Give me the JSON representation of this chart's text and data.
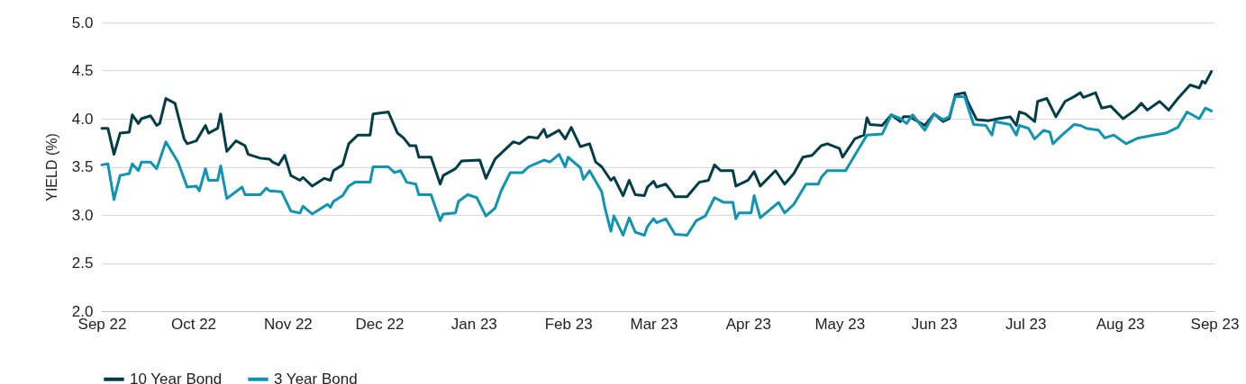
{
  "chart_data": {
    "type": "line",
    "ylabel": "YIELD (%)",
    "xlim": [
      "2022-09-01",
      "2023-09-01"
    ],
    "xticks": [
      {
        "value": "2022-09-01",
        "label": "Sep 22"
      },
      {
        "value": "2022-10-01",
        "label": "Oct 22"
      },
      {
        "value": "2022-11-01",
        "label": "Nov 22"
      },
      {
        "value": "2022-12-01",
        "label": "Dec 22"
      },
      {
        "value": "2023-01-01",
        "label": "Jan 23"
      },
      {
        "value": "2023-02-01",
        "label": "Feb 23"
      },
      {
        "value": "2023-03-01",
        "label": "Mar 23"
      },
      {
        "value": "2023-04-01",
        "label": "Apr 23"
      },
      {
        "value": "2023-05-01",
        "label": "May 23"
      },
      {
        "value": "2023-06-01",
        "label": "Jun 23"
      },
      {
        "value": "2023-07-01",
        "label": "Jul 23"
      },
      {
        "value": "2023-08-01",
        "label": "Aug 23"
      },
      {
        "value": "2023-09-01",
        "label": "Sep 23"
      }
    ],
    "ylim": [
      2.0,
      5.0
    ],
    "yticks": [
      {
        "value": 2.0,
        "label": "2.0"
      },
      {
        "value": 2.5,
        "label": "2.5"
      },
      {
        "value": 3.0,
        "label": "3.0"
      },
      {
        "value": 3.5,
        "label": "3.5"
      },
      {
        "value": 4.0,
        "label": "4.0"
      },
      {
        "value": 4.5,
        "label": "4.5"
      },
      {
        "value": 5.0,
        "label": "5.0"
      }
    ],
    "grid": "y",
    "legend": "bottom",
    "marker": "none",
    "line_style": "solid",
    "series": [
      {
        "name": "10 Year Bond",
        "color": "#033d48",
        "x": [
          "2022-09-01",
          "2022-09-03",
          "2022-09-05",
          "2022-09-07",
          "2022-09-10",
          "2022-09-11",
          "2022-09-13",
          "2022-09-14",
          "2022-09-17",
          "2022-09-19",
          "2022-09-20",
          "2022-09-22",
          "2022-09-25",
          "2022-09-28",
          "2022-09-29",
          "2022-10-02",
          "2022-10-05",
          "2022-10-06",
          "2022-10-09",
          "2022-10-10",
          "2022-10-12",
          "2022-10-15",
          "2022-10-18",
          "2022-10-19",
          "2022-10-23",
          "2022-10-26",
          "2022-10-27",
          "2022-10-29",
          "2022-10-31",
          "2022-11-02",
          "2022-11-05",
          "2022-11-06",
          "2022-11-09",
          "2022-11-13",
          "2022-11-15",
          "2022-11-16",
          "2022-11-19",
          "2022-11-21",
          "2022-11-24",
          "2022-11-28",
          "2022-11-29",
          "2022-12-04",
          "2022-12-07",
          "2022-12-09",
          "2022-12-11",
          "2022-12-13",
          "2022-12-14",
          "2022-12-18",
          "2022-12-21",
          "2022-12-22",
          "2022-12-26",
          "2022-12-28",
          "2023-01-03",
          "2023-01-05",
          "2023-01-08",
          "2023-01-14",
          "2023-01-16",
          "2023-01-19",
          "2023-01-22",
          "2023-01-24",
          "2023-01-25",
          "2023-01-29",
          "2023-01-31",
          "2023-02-02",
          "2023-02-05",
          "2023-02-08",
          "2023-02-10",
          "2023-02-12",
          "2023-02-15",
          "2023-02-16",
          "2023-02-19",
          "2023-02-21",
          "2023-02-23",
          "2023-02-26",
          "2023-02-27",
          "2023-03-01",
          "2023-03-02",
          "2023-03-05",
          "2023-03-07",
          "2023-03-08",
          "2023-03-12",
          "2023-03-16",
          "2023-03-19",
          "2023-03-21",
          "2023-03-23",
          "2023-03-27",
          "2023-03-28",
          "2023-04-01",
          "2023-04-03",
          "2023-04-05",
          "2023-04-10",
          "2023-04-13",
          "2023-04-16",
          "2023-04-19",
          "2023-04-22",
          "2023-04-25",
          "2023-04-27",
          "2023-05-01",
          "2023-05-02",
          "2023-05-06",
          "2023-05-09",
          "2023-05-10",
          "2023-05-11",
          "2023-05-15",
          "2023-05-18",
          "2023-05-21",
          "2023-05-22",
          "2023-05-24",
          "2023-05-29",
          "2023-06-01",
          "2023-06-04",
          "2023-06-06",
          "2023-06-08",
          "2023-06-11",
          "2023-06-12",
          "2023-06-15",
          "2023-06-19",
          "2023-06-22",
          "2023-06-26",
          "2023-06-28",
          "2023-06-29",
          "2023-07-01",
          "2023-07-04",
          "2023-07-05",
          "2023-07-08",
          "2023-07-11",
          "2023-07-14",
          "2023-07-17",
          "2023-07-19",
          "2023-07-20",
          "2023-07-24",
          "2023-07-26",
          "2023-07-29",
          "2023-08-02",
          "2023-08-06",
          "2023-08-08",
          "2023-08-10",
          "2023-08-14",
          "2023-08-17",
          "2023-08-20",
          "2023-08-24",
          "2023-08-27",
          "2023-08-28",
          "2023-08-29",
          "2023-08-31"
        ],
        "values": [
          3.9,
          3.9,
          3.63,
          3.85,
          3.86,
          4.04,
          3.95,
          4.0,
          4.03,
          3.93,
          3.95,
          4.21,
          4.16,
          3.79,
          3.74,
          3.77,
          3.93,
          3.85,
          3.9,
          4.05,
          3.66,
          3.77,
          3.72,
          3.63,
          3.59,
          3.58,
          3.55,
          3.52,
          3.62,
          3.41,
          3.36,
          3.39,
          3.3,
          3.38,
          3.36,
          3.46,
          3.52,
          3.74,
          3.83,
          3.83,
          4.05,
          4.07,
          3.85,
          3.8,
          3.72,
          3.72,
          3.6,
          3.6,
          3.32,
          3.41,
          3.48,
          3.56,
          3.57,
          3.38,
          3.58,
          3.76,
          3.74,
          3.81,
          3.8,
          3.89,
          3.81,
          3.88,
          3.79,
          3.91,
          3.71,
          3.74,
          3.55,
          3.5,
          3.36,
          3.39,
          3.2,
          3.36,
          3.21,
          3.2,
          3.29,
          3.35,
          3.29,
          3.32,
          3.24,
          3.19,
          3.19,
          3.34,
          3.36,
          3.52,
          3.46,
          3.46,
          3.3,
          3.36,
          3.45,
          3.3,
          3.46,
          3.32,
          3.43,
          3.6,
          3.62,
          3.72,
          3.74,
          3.69,
          3.6,
          3.79,
          3.83,
          4.01,
          3.94,
          3.93,
          4.04,
          3.97,
          4.02,
          4.02,
          3.93,
          4.05,
          3.97,
          4.0,
          4.25,
          4.27,
          4.18,
          3.99,
          3.98,
          4.0,
          4.02,
          3.93,
          4.07,
          4.05,
          3.97,
          4.18,
          4.21,
          4.02,
          4.18,
          4.23,
          4.27,
          4.22,
          4.27,
          4.11,
          4.13,
          4.0,
          4.09,
          4.16,
          4.09,
          4.18,
          4.09,
          4.21,
          4.35,
          4.32,
          4.39,
          4.37,
          4.49
        ]
      },
      {
        "name": "3 Year Bond",
        "color": "#0f94b2",
        "x": [
          "2022-09-01",
          "2022-09-03",
          "2022-09-05",
          "2022-09-07",
          "2022-09-10",
          "2022-09-11",
          "2022-09-13",
          "2022-09-14",
          "2022-09-17",
          "2022-09-19",
          "2022-09-22",
          "2022-09-26",
          "2022-09-29",
          "2022-10-02",
          "2022-10-03",
          "2022-10-05",
          "2022-10-06",
          "2022-10-09",
          "2022-10-10",
          "2022-10-12",
          "2022-10-17",
          "2022-10-18",
          "2022-10-23",
          "2022-10-25",
          "2022-10-26",
          "2022-10-30",
          "2022-11-02",
          "2022-11-05",
          "2022-11-06",
          "2022-11-09",
          "2022-11-14",
          "2022-11-15",
          "2022-11-16",
          "2022-11-19",
          "2022-11-21",
          "2022-11-23",
          "2022-11-28",
          "2022-11-29",
          "2022-12-04",
          "2022-12-06",
          "2022-12-08",
          "2022-12-10",
          "2022-12-13",
          "2022-12-14",
          "2022-12-18",
          "2022-12-21",
          "2022-12-22",
          "2022-12-26",
          "2022-12-27",
          "2022-12-30",
          "2023-01-02",
          "2023-01-05",
          "2023-01-08",
          "2023-01-10",
          "2023-01-13",
          "2023-01-17",
          "2023-01-19",
          "2023-01-24",
          "2023-01-26",
          "2023-01-29",
          "2023-01-31",
          "2023-02-01",
          "2023-02-05",
          "2023-02-06",
          "2023-02-08",
          "2023-02-12",
          "2023-02-13",
          "2023-02-15",
          "2023-02-16",
          "2023-02-19",
          "2023-02-21",
          "2023-02-23",
          "2023-02-26",
          "2023-02-27",
          "2023-03-01",
          "2023-03-02",
          "2023-03-05",
          "2023-03-08",
          "2023-03-12",
          "2023-03-15",
          "2023-03-18",
          "2023-03-21",
          "2023-03-24",
          "2023-03-27",
          "2023-03-28",
          "2023-03-29",
          "2023-04-02",
          "2023-04-03",
          "2023-04-05",
          "2023-04-11",
          "2023-04-13",
          "2023-04-16",
          "2023-04-20",
          "2023-04-24",
          "2023-04-25",
          "2023-04-27",
          "2023-05-03",
          "2023-05-06",
          "2023-05-10",
          "2023-05-15",
          "2023-05-18",
          "2023-05-21",
          "2023-05-23",
          "2023-05-25",
          "2023-05-29",
          "2023-06-01",
          "2023-06-04",
          "2023-06-06",
          "2023-06-08",
          "2023-06-11",
          "2023-06-14",
          "2023-06-18",
          "2023-06-20",
          "2023-06-21",
          "2023-06-26",
          "2023-06-28",
          "2023-06-29",
          "2023-07-02",
          "2023-07-04",
          "2023-07-07",
          "2023-07-09",
          "2023-07-10",
          "2023-07-13",
          "2023-07-17",
          "2023-07-19",
          "2023-07-21",
          "2023-07-25",
          "2023-07-27",
          "2023-07-30",
          "2023-08-03",
          "2023-08-07",
          "2023-08-09",
          "2023-08-12",
          "2023-08-16",
          "2023-08-20",
          "2023-08-23",
          "2023-08-27",
          "2023-08-29",
          "2023-08-31"
        ],
        "values": [
          3.52,
          3.53,
          3.16,
          3.41,
          3.43,
          3.53,
          3.46,
          3.55,
          3.55,
          3.48,
          3.76,
          3.55,
          3.29,
          3.3,
          3.25,
          3.48,
          3.36,
          3.36,
          3.51,
          3.17,
          3.29,
          3.21,
          3.21,
          3.28,
          3.25,
          3.24,
          3.04,
          3.02,
          3.09,
          3.01,
          3.11,
          3.08,
          3.14,
          3.2,
          3.3,
          3.34,
          3.34,
          3.5,
          3.5,
          3.44,
          3.46,
          3.34,
          3.32,
          3.21,
          3.21,
          2.94,
          3.01,
          3.02,
          3.14,
          3.21,
          3.18,
          2.99,
          3.07,
          3.25,
          3.44,
          3.44,
          3.5,
          3.57,
          3.55,
          3.63,
          3.5,
          3.6,
          3.49,
          3.37,
          3.46,
          3.24,
          3.08,
          2.83,
          2.99,
          2.79,
          2.97,
          2.82,
          2.79,
          2.88,
          2.96,
          2.92,
          2.96,
          2.8,
          2.79,
          2.94,
          2.99,
          3.18,
          3.13,
          3.13,
          2.96,
          3.02,
          3.02,
          3.2,
          2.97,
          3.13,
          3.02,
          3.11,
          3.32,
          3.32,
          3.39,
          3.46,
          3.46,
          3.62,
          3.83,
          3.84,
          4.04,
          4.0,
          3.95,
          4.04,
          3.88,
          4.05,
          3.99,
          4.02,
          4.23,
          4.23,
          3.94,
          3.93,
          3.83,
          3.97,
          3.94,
          3.83,
          3.93,
          3.9,
          3.79,
          3.88,
          3.86,
          3.74,
          3.83,
          3.94,
          3.93,
          3.9,
          3.88,
          3.8,
          3.83,
          3.74,
          3.8,
          3.81,
          3.83,
          3.85,
          3.91,
          4.07,
          4.0,
          4.11,
          4.08
        ]
      }
    ]
  }
}
